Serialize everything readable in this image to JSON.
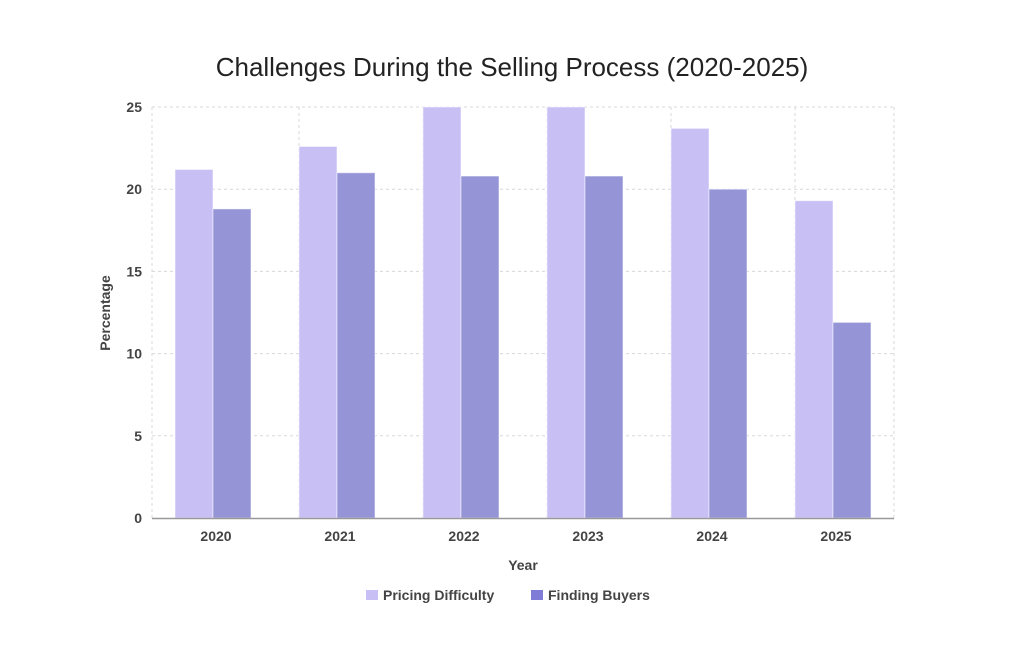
{
  "chart_data": {
    "type": "bar",
    "title": "Challenges During the Selling Process (2020-2025)",
    "xlabel": "Year",
    "ylabel": "Percentage",
    "categories": [
      "2020",
      "2021",
      "2022",
      "2023",
      "2024",
      "2025"
    ],
    "series": [
      {
        "name": "Pricing Difficulty",
        "color": "#c8c0f5",
        "values": [
          21.2,
          22.6,
          25.0,
          25.0,
          23.7,
          19.3
        ]
      },
      {
        "name": "Finding Buyers",
        "color": "#9594d7",
        "values": [
          18.8,
          21.0,
          20.8,
          20.8,
          20.0,
          11.9
        ]
      }
    ],
    "ylim": [
      0,
      25
    ],
    "yticks": [
      "0",
      "5",
      "10",
      "15",
      "20",
      "25"
    ],
    "grid": true,
    "legend_position": "bottom"
  }
}
